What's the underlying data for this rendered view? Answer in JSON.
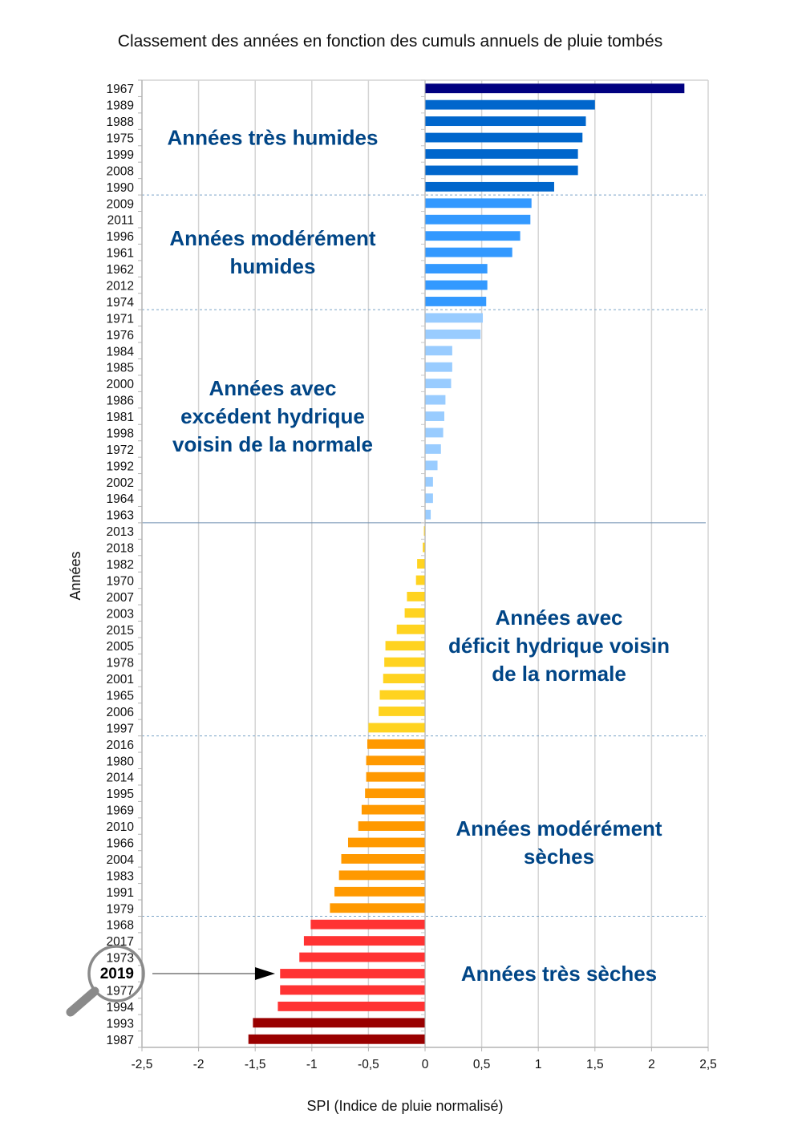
{
  "chart_data": {
    "type": "bar",
    "orientation": "horizontal",
    "title": "Classement des années en fonction des cumuls annuels de pluie tombés",
    "xlabel": "SPI (Indice de pluie normalisé)",
    "ylabel": "Années",
    "xlim": [
      -2.5,
      2.5
    ],
    "xticks": [
      -2.5,
      -2,
      -1.5,
      -1,
      -0.5,
      0,
      0.5,
      1,
      1.5,
      2,
      2.5
    ],
    "xtick_labels": [
      "-2,5",
      "-2",
      "-1,5",
      "-1",
      "-0,5",
      "0",
      "0,5",
      "1",
      "1,5",
      "2",
      "2,5"
    ],
    "grid": "vertical",
    "categories": [
      "1967",
      "1989",
      "1988",
      "1975",
      "1999",
      "2008",
      "1990",
      "2009",
      "2011",
      "1996",
      "1961",
      "1962",
      "2012",
      "1974",
      "1971",
      "1976",
      "1984",
      "1985",
      "2000",
      "1986",
      "1981",
      "1998",
      "1972",
      "1992",
      "2002",
      "1964",
      "1963",
      "2013",
      "2018",
      "1982",
      "1970",
      "2007",
      "2003",
      "2015",
      "2005",
      "1978",
      "2001",
      "1965",
      "2006",
      "1997",
      "2016",
      "1980",
      "2014",
      "1995",
      "1969",
      "2010",
      "1966",
      "2004",
      "1983",
      "1991",
      "1979",
      "1968",
      "2017",
      "1973",
      "2019",
      "1977",
      "1994",
      "1993",
      "1987"
    ],
    "values": [
      2.29,
      1.5,
      1.42,
      1.39,
      1.35,
      1.35,
      1.14,
      0.94,
      0.93,
      0.84,
      0.77,
      0.55,
      0.55,
      0.54,
      0.51,
      0.49,
      0.24,
      0.24,
      0.23,
      0.18,
      0.17,
      0.16,
      0.14,
      0.11,
      0.07,
      0.07,
      0.05,
      -0.01,
      -0.02,
      -0.07,
      -0.08,
      -0.16,
      -0.18,
      -0.25,
      -0.35,
      -0.36,
      -0.37,
      -0.4,
      -0.41,
      -0.5,
      -0.51,
      -0.52,
      -0.52,
      -0.53,
      -0.56,
      -0.59,
      -0.68,
      -0.74,
      -0.76,
      -0.8,
      -0.84,
      -1.01,
      -1.07,
      -1.11,
      -1.28,
      -1.28,
      -1.3,
      -1.52,
      -1.56
    ],
    "classes": [
      {
        "name": "extremely_wet",
        "from": "1967",
        "to": "1967",
        "color": "#000080"
      },
      {
        "name": "very_wet",
        "from": "1989",
        "to": "1990",
        "color": "#0066cc"
      },
      {
        "name": "moderately_wet",
        "from": "2009",
        "to": "1974",
        "color": "#3399ff"
      },
      {
        "name": "near_normal_surplus",
        "from": "1971",
        "to": "1963",
        "color": "#99ccff"
      },
      {
        "name": "near_normal_deficit",
        "from": "2013",
        "to": "1997",
        "color": "#ffd320"
      },
      {
        "name": "moderately_dry",
        "from": "2016",
        "to": "1979",
        "color": "#ff9900"
      },
      {
        "name": "very_dry",
        "from": "1968",
        "to": "1994",
        "color": "#ff3333"
      },
      {
        "name": "extremely_dry",
        "from": "1993",
        "to": "1987",
        "color": "#990000"
      }
    ],
    "separators": [
      {
        "after": "1990",
        "style": "dashed"
      },
      {
        "after": "1974",
        "style": "dashed"
      },
      {
        "after": "1963",
        "style": "solid"
      },
      {
        "after": "1997",
        "style": "dashed"
      },
      {
        "after": "1979",
        "style": "dashed"
      }
    ],
    "annotations": [
      {
        "lines": [
          "Années très humides"
        ],
        "anchor_category": "1975",
        "side": "left"
      },
      {
        "lines": [
          "Années modérément",
          "humides"
        ],
        "anchor_category": "1961",
        "side": "left"
      },
      {
        "lines": [
          "Années avec",
          "excédent hydrique",
          "voisin de la normale"
        ],
        "anchor_category": "1981",
        "side": "left"
      },
      {
        "lines": [
          "Années avec",
          "déficit hydrique voisin",
          "de la normale"
        ],
        "anchor_category": "2005",
        "side": "right"
      },
      {
        "lines": [
          "Années modérément",
          "sèches"
        ],
        "anchor_category": "1966",
        "side": "right"
      },
      {
        "lines": [
          "Années très sèches"
        ],
        "anchor_category": "2019",
        "side": "right"
      }
    ],
    "highlight": {
      "category": "2019",
      "label": "2019",
      "marker": "magnifier-with-arrow"
    }
  }
}
